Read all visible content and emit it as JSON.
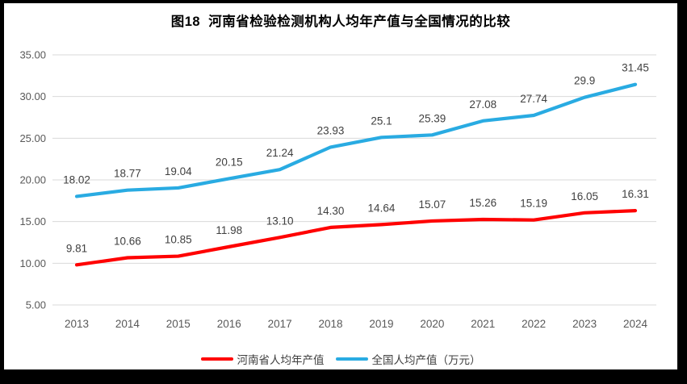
{
  "frame_border_color": "#000000",
  "chart_data": {
    "type": "line",
    "title": "图18  河南省检验检测机构人均年产值与全国情况的比较",
    "categories": [
      "2013",
      "2014",
      "2015",
      "2016",
      "2017",
      "2018",
      "2019",
      "2020",
      "2021",
      "2022",
      "2023",
      "2024"
    ],
    "series": [
      {
        "name": "河南省人均年产值",
        "color": "#FF0000",
        "values": [
          9.81,
          10.66,
          10.85,
          11.98,
          13.1,
          14.3,
          14.64,
          15.07,
          15.26,
          15.19,
          16.05,
          16.31
        ],
        "labels": [
          "9.81",
          "10.66",
          "10.85",
          "11.98",
          "13.10",
          "14.30",
          "14.64",
          "15.07",
          "15.26",
          "15.19",
          "16.05",
          "16.31"
        ]
      },
      {
        "name": "全国人均产值（万元）",
        "color": "#29ABE2",
        "values": [
          18.02,
          18.77,
          19.04,
          20.15,
          21.24,
          23.93,
          25.1,
          25.39,
          27.08,
          27.74,
          29.9,
          31.45
        ],
        "labels": [
          "18.02",
          "18.77",
          "19.04",
          "20.15",
          "21.24",
          "23.93",
          "25.1",
          "25.39",
          "27.08",
          "27.74",
          "29.9",
          "31.45"
        ]
      }
    ],
    "xlabel": "",
    "ylabel": "",
    "ylim": [
      5,
      35
    ],
    "y_ticks": [
      "5.00",
      "10.00",
      "15.00",
      "20.00",
      "25.00",
      "30.00",
      "35.00"
    ],
    "grid": true,
    "legend_position": "bottom",
    "gridline_color": "#D9D9D9",
    "axis_label_color": "#595959",
    "data_label_color": "#404040"
  }
}
